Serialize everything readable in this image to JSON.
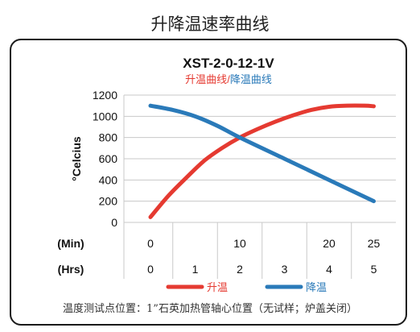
{
  "page_title": "升降温速率曲线",
  "footer_note": "温度测试点位置：1”石英加热管轴心位置（无试样；炉盖关闭）",
  "chart_data": {
    "type": "line",
    "title": "XST-2-0-12-1V",
    "subtitle_parts": [
      {
        "text": "升温曲线",
        "color": "#e53a31"
      },
      {
        "text": "/",
        "color": "#e53a31"
      },
      {
        "text": "降温曲线",
        "color": "#2a7ab9"
      }
    ],
    "ylabel": "°Celcius",
    "ylim": [
      0,
      1200
    ],
    "yticks": [
      0,
      200,
      400,
      600,
      800,
      1000,
      1200
    ],
    "x_axis_min": {
      "label": "(Min)",
      "ticks": [
        0,
        10,
        20,
        25
      ],
      "lim": [
        -2,
        28
      ]
    },
    "x_axis_hrs": {
      "label": "(Hrs)",
      "ticks": [
        0,
        1,
        2,
        3,
        4,
        5
      ],
      "lim": [
        0,
        5
      ]
    },
    "grid": true,
    "series": [
      {
        "name": "升温",
        "x_unit": "min",
        "color": "#e53a31",
        "x": [
          0,
          2,
          4,
          6,
          8,
          10,
          12,
          14,
          16,
          18,
          20,
          22,
          24,
          25
        ],
        "values": [
          50,
          250,
          420,
          580,
          700,
          800,
          880,
          950,
          1010,
          1060,
          1090,
          1100,
          1100,
          1095
        ]
      },
      {
        "name": "降温",
        "x_unit": "hrs",
        "color": "#2a7ab9",
        "x": [
          0,
          0.5,
          1,
          1.5,
          2,
          3,
          4,
          5
        ],
        "values": [
          1100,
          1060,
          1000,
          910,
          800,
          600,
          400,
          200
        ]
      }
    ],
    "legend": {
      "position": "bottom"
    }
  }
}
